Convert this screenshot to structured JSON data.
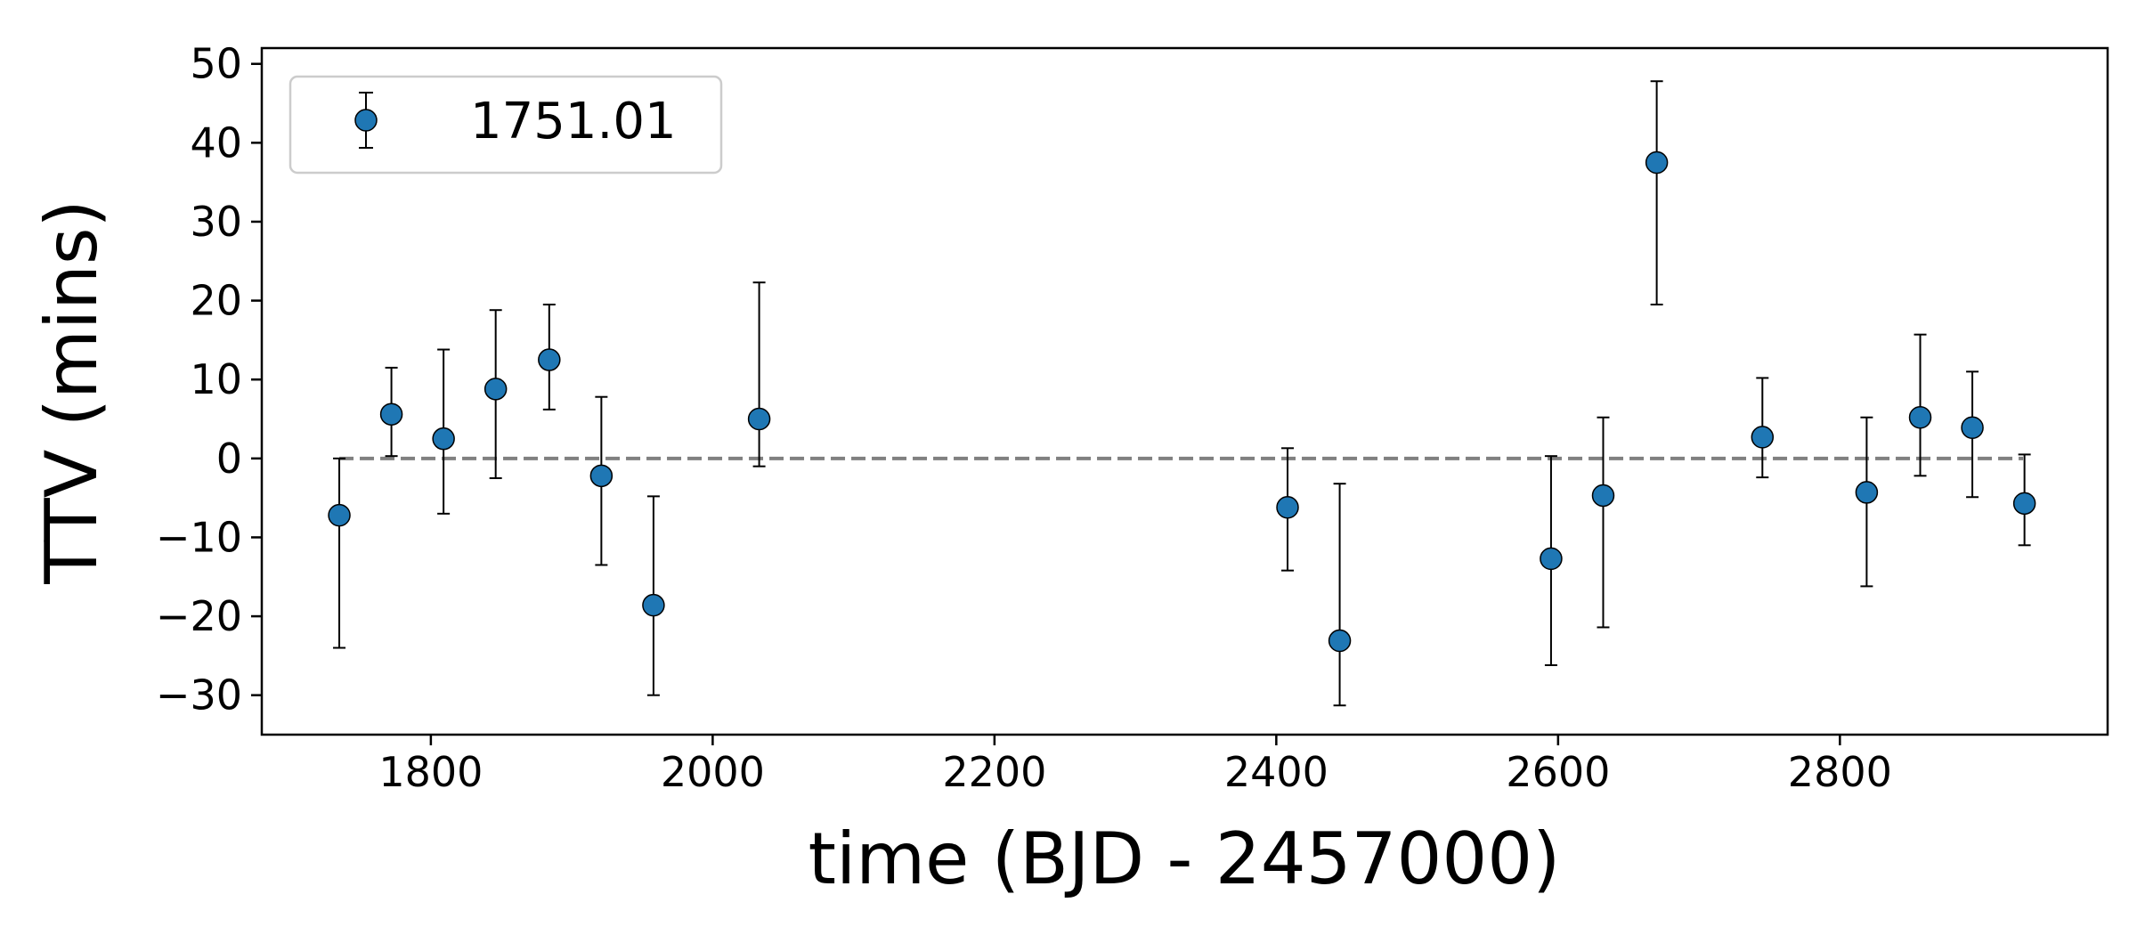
{
  "chart_data": {
    "type": "scatter",
    "title": "",
    "xlabel": "time (BJD - 2457000)",
    "ylabel": "TTV (mins)",
    "xlim": [
      1680,
      2990
    ],
    "ylim": [
      -35,
      52
    ],
    "xticks": [
      {
        "value": 1800,
        "label": "1800"
      },
      {
        "value": 2000,
        "label": "2000"
      },
      {
        "value": 2200,
        "label": "2200"
      },
      {
        "value": 2400,
        "label": "2400"
      },
      {
        "value": 2600,
        "label": "2600"
      },
      {
        "value": 2800,
        "label": "2800"
      }
    ],
    "yticks": [
      {
        "value": -30,
        "label": "−30"
      },
      {
        "value": -20,
        "label": "−20"
      },
      {
        "value": -10,
        "label": "−10"
      },
      {
        "value": 0,
        "label": "0"
      },
      {
        "value": 10,
        "label": "10"
      },
      {
        "value": 20,
        "label": "20"
      },
      {
        "value": 30,
        "label": "30"
      },
      {
        "value": 40,
        "label": "40"
      },
      {
        "value": 50,
        "label": "50"
      }
    ],
    "grid": false,
    "legend_position": "top-left",
    "reference_line": {
      "y": 0,
      "x_start": 1735,
      "x_end": 2930,
      "style": "dashed",
      "color": "#808080"
    },
    "series": [
      {
        "name": "1751.01",
        "color": "#1f77b4",
        "errorbar_color": "#000000",
        "points": [
          {
            "x": 1735,
            "y": -7.2,
            "ylow": -24.0,
            "yhigh": 0.0
          },
          {
            "x": 1772,
            "y": 5.6,
            "ylow": 0.3,
            "yhigh": 11.5
          },
          {
            "x": 1809,
            "y": 2.5,
            "ylow": -7.0,
            "yhigh": 13.8
          },
          {
            "x": 1846,
            "y": 8.8,
            "ylow": -2.5,
            "yhigh": 18.8
          },
          {
            "x": 1884,
            "y": 12.5,
            "ylow": 6.2,
            "yhigh": 19.5
          },
          {
            "x": 1921,
            "y": -2.2,
            "ylow": -13.5,
            "yhigh": 7.8
          },
          {
            "x": 1958,
            "y": -18.6,
            "ylow": -30.0,
            "yhigh": -4.8
          },
          {
            "x": 2033,
            "y": 5.0,
            "ylow": -1.0,
            "yhigh": 22.3
          },
          {
            "x": 2408,
            "y": -6.2,
            "ylow": -14.2,
            "yhigh": 1.3
          },
          {
            "x": 2445,
            "y": -23.1,
            "ylow": -31.3,
            "yhigh": -3.2
          },
          {
            "x": 2595,
            "y": -12.7,
            "ylow": -26.2,
            "yhigh": 0.3
          },
          {
            "x": 2632,
            "y": -4.7,
            "ylow": -21.4,
            "yhigh": 5.2
          },
          {
            "x": 2670,
            "y": 37.5,
            "ylow": 19.5,
            "yhigh": 47.8
          },
          {
            "x": 2745,
            "y": 2.7,
            "ylow": -2.4,
            "yhigh": 10.2
          },
          {
            "x": 2819,
            "y": -4.3,
            "ylow": -16.2,
            "yhigh": 5.2
          },
          {
            "x": 2857,
            "y": 5.2,
            "ylow": -2.2,
            "yhigh": 15.7
          },
          {
            "x": 2894,
            "y": 3.9,
            "ylow": -4.9,
            "yhigh": 11.0
          },
          {
            "x": 2931,
            "y": -5.7,
            "ylow": -11.0,
            "yhigh": 0.5
          }
        ]
      }
    ]
  }
}
